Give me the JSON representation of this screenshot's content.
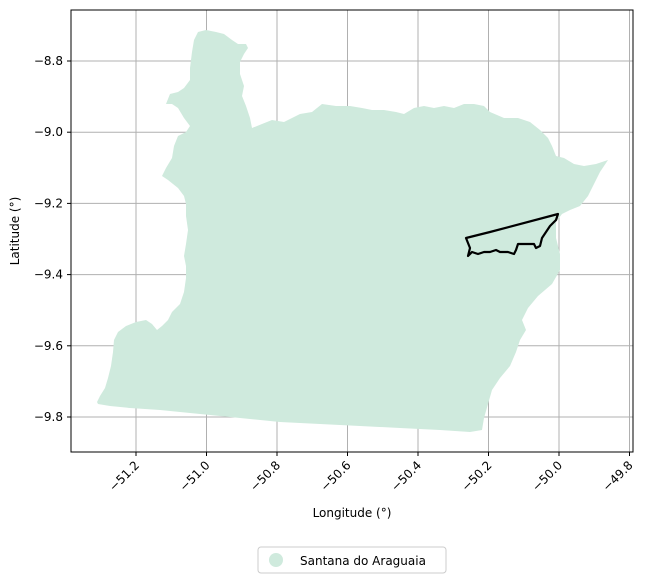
{
  "map": {
    "xlabel": "Longitude (°)",
    "ylabel": "Latitude (°)",
    "x_ticks": [
      {
        "value": -51.2,
        "label": "−51.2"
      },
      {
        "value": -51.0,
        "label": "−51.0"
      },
      {
        "value": -50.8,
        "label": "−50.8"
      },
      {
        "value": -50.6,
        "label": "−50.6"
      },
      {
        "value": -50.4,
        "label": "−50.4"
      },
      {
        "value": -50.2,
        "label": "−50.2"
      },
      {
        "value": -50.0,
        "label": "−50.0"
      },
      {
        "value": -49.8,
        "label": "−49.8"
      }
    ],
    "y_ticks": [
      {
        "value": -8.8,
        "label": "−8.8"
      },
      {
        "value": -9.0,
        "label": "−9.0"
      },
      {
        "value": -9.2,
        "label": "−9.2"
      },
      {
        "value": -9.4,
        "label": "−9.4"
      },
      {
        "value": -9.6,
        "label": "−9.6"
      },
      {
        "value": -9.8,
        "label": "−9.8"
      }
    ],
    "grid": true,
    "legend": {
      "position": "bottom-center",
      "entries": [
        {
          "label": "Santana do Araguaia",
          "color": "#cfeadd"
        }
      ]
    },
    "colors": {
      "fill": "#cfeadd",
      "outline": "#000000",
      "grid": "#b0b0b0"
    }
  }
}
